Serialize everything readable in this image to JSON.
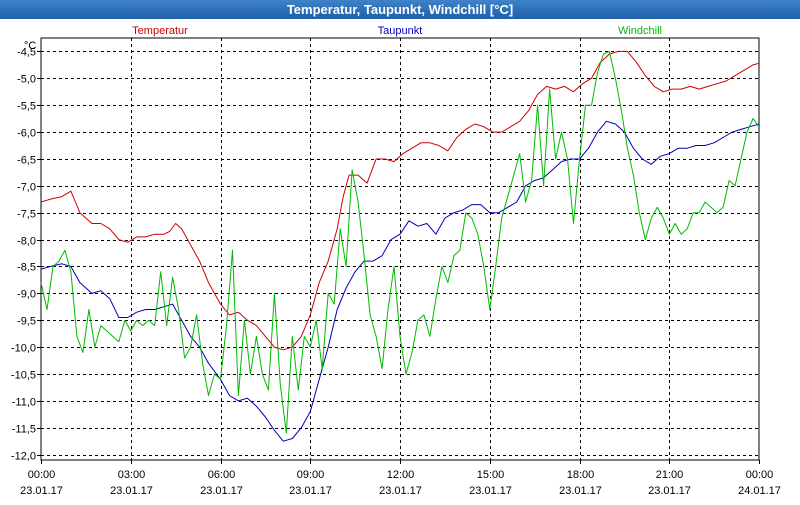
{
  "window": {
    "title": "Temperatur, Taupunkt, Windchill [°C]"
  },
  "chart_data": {
    "type": "line",
    "title": "Temperatur, Taupunkt, Windchill [°C]",
    "unit_label": "°C",
    "ylim": [
      -12.1,
      -4.25
    ],
    "y_ticks": [
      "-4,5",
      "-5,0",
      "-5,5",
      "-6,0",
      "-6,5",
      "-7,0",
      "-7,5",
      "-8,0",
      "-8,5",
      "-9,0",
      "-9,5",
      "-10,0",
      "-10,5",
      "-11,0",
      "-11,5",
      "-12,0"
    ],
    "y_tick_values": [
      -4.5,
      -5,
      -5.5,
      -6,
      -6.5,
      -7,
      -7.5,
      -8,
      -8.5,
      -9,
      -9.5,
      -10,
      -10.5,
      -11,
      -11.5,
      -12
    ],
    "xlim_hours": [
      0,
      24
    ],
    "x_ticks": [
      {
        "h": 0,
        "time": "00:00",
        "date": "23.01.17"
      },
      {
        "h": 3,
        "time": "03:00",
        "date": "23.01.17"
      },
      {
        "h": 6,
        "time": "06:00",
        "date": "23.01.17"
      },
      {
        "h": 9,
        "time": "09:00",
        "date": "23.01.17"
      },
      {
        "h": 12,
        "time": "12:00",
        "date": "23.01.17"
      },
      {
        "h": 15,
        "time": "15:00",
        "date": "23.01.17"
      },
      {
        "h": 18,
        "time": "18:00",
        "date": "23.01.17"
      },
      {
        "h": 21,
        "time": "21:00",
        "date": "23.01.17"
      },
      {
        "h": 24,
        "time": "00:00",
        "date": "24.01.17"
      }
    ],
    "grid": true,
    "series": [
      {
        "name": "Temperatur",
        "color": "#cc0000",
        "points": [
          [
            0,
            -7.3
          ],
          [
            0.3,
            -7.25
          ],
          [
            0.7,
            -7.2
          ],
          [
            1.0,
            -7.1
          ],
          [
            1.3,
            -7.5
          ],
          [
            1.7,
            -7.7
          ],
          [
            2.0,
            -7.7
          ],
          [
            2.3,
            -7.8
          ],
          [
            2.6,
            -8.0
          ],
          [
            2.9,
            -8.05
          ],
          [
            3.2,
            -7.95
          ],
          [
            3.5,
            -7.95
          ],
          [
            3.8,
            -7.9
          ],
          [
            4.1,
            -7.9
          ],
          [
            4.3,
            -7.85
          ],
          [
            4.5,
            -7.7
          ],
          [
            4.7,
            -7.8
          ],
          [
            5.0,
            -8.1
          ],
          [
            5.3,
            -8.4
          ],
          [
            5.6,
            -8.8
          ],
          [
            6.0,
            -9.2
          ],
          [
            6.3,
            -9.4
          ],
          [
            6.6,
            -9.35
          ],
          [
            6.9,
            -9.5
          ],
          [
            7.2,
            -9.6
          ],
          [
            7.5,
            -9.8
          ],
          [
            7.8,
            -10.0
          ],
          [
            8.1,
            -10.05
          ],
          [
            8.4,
            -10.0
          ],
          [
            8.7,
            -9.8
          ],
          [
            9.0,
            -9.4
          ],
          [
            9.3,
            -8.8
          ],
          [
            9.6,
            -8.4
          ],
          [
            9.9,
            -7.8
          ],
          [
            10.1,
            -7.2
          ],
          [
            10.3,
            -6.8
          ],
          [
            10.6,
            -6.8
          ],
          [
            10.9,
            -6.95
          ],
          [
            11.2,
            -6.5
          ],
          [
            11.5,
            -6.5
          ],
          [
            11.8,
            -6.55
          ],
          [
            12.1,
            -6.4
          ],
          [
            12.4,
            -6.3
          ],
          [
            12.7,
            -6.2
          ],
          [
            13.0,
            -6.2
          ],
          [
            13.3,
            -6.25
          ],
          [
            13.6,
            -6.35
          ],
          [
            13.9,
            -6.1
          ],
          [
            14.2,
            -5.95
          ],
          [
            14.5,
            -5.85
          ],
          [
            14.8,
            -5.9
          ],
          [
            15.1,
            -6.0
          ],
          [
            15.4,
            -6.0
          ],
          [
            15.7,
            -5.9
          ],
          [
            16.0,
            -5.8
          ],
          [
            16.3,
            -5.6
          ],
          [
            16.6,
            -5.3
          ],
          [
            16.9,
            -5.15
          ],
          [
            17.2,
            -5.2
          ],
          [
            17.5,
            -5.15
          ],
          [
            17.8,
            -5.25
          ],
          [
            18.1,
            -5.1
          ],
          [
            18.4,
            -5.0
          ],
          [
            18.7,
            -4.7
          ],
          [
            19.0,
            -4.55
          ],
          [
            19.3,
            -4.5
          ],
          [
            19.6,
            -4.5
          ],
          [
            19.9,
            -4.7
          ],
          [
            20.2,
            -4.95
          ],
          [
            20.5,
            -5.15
          ],
          [
            20.8,
            -5.25
          ],
          [
            21.1,
            -5.2
          ],
          [
            21.4,
            -5.2
          ],
          [
            21.7,
            -5.15
          ],
          [
            22.0,
            -5.2
          ],
          [
            22.3,
            -5.15
          ],
          [
            22.6,
            -5.1
          ],
          [
            22.9,
            -5.05
          ],
          [
            23.2,
            -4.95
          ],
          [
            23.5,
            -4.85
          ],
          [
            23.8,
            -4.75
          ],
          [
            24.0,
            -4.72
          ]
        ]
      },
      {
        "name": "Taupunkt",
        "color": "#0000bb",
        "points": [
          [
            0,
            -8.55
          ],
          [
            0.3,
            -8.5
          ],
          [
            0.7,
            -8.45
          ],
          [
            1.0,
            -8.5
          ],
          [
            1.3,
            -8.8
          ],
          [
            1.7,
            -9.0
          ],
          [
            2.0,
            -8.95
          ],
          [
            2.3,
            -9.1
          ],
          [
            2.6,
            -9.45
          ],
          [
            2.9,
            -9.45
          ],
          [
            3.2,
            -9.35
          ],
          [
            3.5,
            -9.3
          ],
          [
            3.8,
            -9.3
          ],
          [
            4.1,
            -9.25
          ],
          [
            4.4,
            -9.2
          ],
          [
            4.7,
            -9.5
          ],
          [
            5.0,
            -9.8
          ],
          [
            5.3,
            -10.0
          ],
          [
            5.6,
            -10.3
          ],
          [
            6.0,
            -10.6
          ],
          [
            6.3,
            -10.9
          ],
          [
            6.6,
            -11.0
          ],
          [
            6.9,
            -10.95
          ],
          [
            7.2,
            -11.1
          ],
          [
            7.5,
            -11.3
          ],
          [
            7.8,
            -11.55
          ],
          [
            8.1,
            -11.75
          ],
          [
            8.4,
            -11.7
          ],
          [
            8.7,
            -11.5
          ],
          [
            9.0,
            -11.2
          ],
          [
            9.3,
            -10.6
          ],
          [
            9.6,
            -10.0
          ],
          [
            9.9,
            -9.3
          ],
          [
            10.2,
            -8.9
          ],
          [
            10.5,
            -8.6
          ],
          [
            10.8,
            -8.4
          ],
          [
            11.1,
            -8.4
          ],
          [
            11.4,
            -8.3
          ],
          [
            11.7,
            -8.0
          ],
          [
            12.0,
            -7.9
          ],
          [
            12.3,
            -7.65
          ],
          [
            12.6,
            -7.75
          ],
          [
            12.9,
            -7.7
          ],
          [
            13.2,
            -7.9
          ],
          [
            13.5,
            -7.6
          ],
          [
            13.8,
            -7.5
          ],
          [
            14.1,
            -7.45
          ],
          [
            14.4,
            -7.35
          ],
          [
            14.7,
            -7.35
          ],
          [
            15.0,
            -7.5
          ],
          [
            15.3,
            -7.5
          ],
          [
            15.6,
            -7.4
          ],
          [
            15.9,
            -7.3
          ],
          [
            16.2,
            -7.0
          ],
          [
            16.5,
            -6.9
          ],
          [
            16.8,
            -6.85
          ],
          [
            17.1,
            -6.7
          ],
          [
            17.4,
            -6.55
          ],
          [
            17.7,
            -6.5
          ],
          [
            18.0,
            -6.5
          ],
          [
            18.3,
            -6.3
          ],
          [
            18.6,
            -6.0
          ],
          [
            18.9,
            -5.8
          ],
          [
            19.2,
            -5.85
          ],
          [
            19.5,
            -6.0
          ],
          [
            19.8,
            -6.3
          ],
          [
            20.1,
            -6.5
          ],
          [
            20.4,
            -6.6
          ],
          [
            20.7,
            -6.45
          ],
          [
            21.0,
            -6.4
          ],
          [
            21.3,
            -6.3
          ],
          [
            21.6,
            -6.3
          ],
          [
            21.9,
            -6.25
          ],
          [
            22.2,
            -6.25
          ],
          [
            22.5,
            -6.2
          ],
          [
            22.8,
            -6.1
          ],
          [
            23.1,
            -6.0
          ],
          [
            23.4,
            -5.95
          ],
          [
            23.7,
            -5.9
          ],
          [
            24.0,
            -5.85
          ]
        ]
      },
      {
        "name": "Windchill",
        "color": "#00bb00",
        "points": [
          [
            0,
            -8.8
          ],
          [
            0.2,
            -9.3
          ],
          [
            0.4,
            -8.5
          ],
          [
            0.6,
            -8.4
          ],
          [
            0.8,
            -8.2
          ],
          [
            1.0,
            -8.6
          ],
          [
            1.2,
            -9.8
          ],
          [
            1.4,
            -10.1
          ],
          [
            1.6,
            -9.3
          ],
          [
            1.8,
            -10.0
          ],
          [
            2.0,
            -9.6
          ],
          [
            2.2,
            -9.7
          ],
          [
            2.4,
            -9.8
          ],
          [
            2.6,
            -9.9
          ],
          [
            2.8,
            -9.5
          ],
          [
            3.0,
            -9.7
          ],
          [
            3.2,
            -9.5
          ],
          [
            3.4,
            -9.6
          ],
          [
            3.6,
            -9.5
          ],
          [
            3.8,
            -9.6
          ],
          [
            4.0,
            -8.6
          ],
          [
            4.2,
            -9.6
          ],
          [
            4.4,
            -8.7
          ],
          [
            4.6,
            -9.3
          ],
          [
            4.8,
            -10.2
          ],
          [
            5.0,
            -10.0
          ],
          [
            5.2,
            -9.4
          ],
          [
            5.4,
            -10.3
          ],
          [
            5.6,
            -10.9
          ],
          [
            5.8,
            -10.5
          ],
          [
            6.0,
            -10.6
          ],
          [
            6.2,
            -9.6
          ],
          [
            6.4,
            -8.2
          ],
          [
            6.6,
            -10.9
          ],
          [
            6.8,
            -9.5
          ],
          [
            7.0,
            -10.5
          ],
          [
            7.2,
            -9.8
          ],
          [
            7.4,
            -10.5
          ],
          [
            7.6,
            -10.8
          ],
          [
            7.8,
            -9.0
          ],
          [
            8.0,
            -10.7
          ],
          [
            8.2,
            -11.6
          ],
          [
            8.4,
            -9.8
          ],
          [
            8.6,
            -10.8
          ],
          [
            8.8,
            -9.8
          ],
          [
            9.0,
            -10.0
          ],
          [
            9.2,
            -9.5
          ],
          [
            9.4,
            -10.4
          ],
          [
            9.6,
            -9.0
          ],
          [
            9.8,
            -9.2
          ],
          [
            10.0,
            -7.8
          ],
          [
            10.2,
            -8.5
          ],
          [
            10.4,
            -6.7
          ],
          [
            10.6,
            -7.3
          ],
          [
            10.8,
            -8.3
          ],
          [
            11.0,
            -9.4
          ],
          [
            11.2,
            -9.8
          ],
          [
            11.4,
            -10.4
          ],
          [
            11.6,
            -9.3
          ],
          [
            11.8,
            -8.5
          ],
          [
            12.0,
            -9.8
          ],
          [
            12.2,
            -10.5
          ],
          [
            12.4,
            -10.1
          ],
          [
            12.6,
            -9.5
          ],
          [
            12.8,
            -9.4
          ],
          [
            13.0,
            -9.8
          ],
          [
            13.2,
            -9.1
          ],
          [
            13.4,
            -8.5
          ],
          [
            13.6,
            -8.8
          ],
          [
            13.8,
            -8.3
          ],
          [
            14.0,
            -8.2
          ],
          [
            14.2,
            -7.5
          ],
          [
            14.4,
            -7.6
          ],
          [
            14.6,
            -7.9
          ],
          [
            14.8,
            -8.5
          ],
          [
            15.0,
            -9.3
          ],
          [
            15.2,
            -8.5
          ],
          [
            15.4,
            -7.6
          ],
          [
            15.6,
            -7.2
          ],
          [
            15.8,
            -6.8
          ],
          [
            16.0,
            -6.4
          ],
          [
            16.2,
            -7.3
          ],
          [
            16.4,
            -6.9
          ],
          [
            16.6,
            -5.5
          ],
          [
            16.8,
            -7.0
          ],
          [
            17.0,
            -5.2
          ],
          [
            17.2,
            -6.5
          ],
          [
            17.4,
            -6.0
          ],
          [
            17.6,
            -6.5
          ],
          [
            17.8,
            -7.7
          ],
          [
            18.0,
            -6.5
          ],
          [
            18.2,
            -5.5
          ],
          [
            18.4,
            -5.5
          ],
          [
            18.6,
            -4.9
          ],
          [
            18.8,
            -4.55
          ],
          [
            19.0,
            -4.5
          ],
          [
            19.2,
            -5.0
          ],
          [
            19.4,
            -5.6
          ],
          [
            19.6,
            -6.3
          ],
          [
            19.8,
            -6.8
          ],
          [
            20.0,
            -7.5
          ],
          [
            20.2,
            -8.0
          ],
          [
            20.4,
            -7.6
          ],
          [
            20.6,
            -7.4
          ],
          [
            20.8,
            -7.6
          ],
          [
            21.0,
            -7.9
          ],
          [
            21.2,
            -7.7
          ],
          [
            21.4,
            -7.9
          ],
          [
            21.6,
            -7.8
          ],
          [
            21.8,
            -7.5
          ],
          [
            22.0,
            -7.5
          ],
          [
            22.2,
            -7.3
          ],
          [
            22.4,
            -7.4
          ],
          [
            22.6,
            -7.5
          ],
          [
            22.8,
            -7.4
          ],
          [
            23.0,
            -6.9
          ],
          [
            23.2,
            -7.0
          ],
          [
            23.4,
            -6.5
          ],
          [
            23.6,
            -6.0
          ],
          [
            23.8,
            -5.75
          ],
          [
            24.0,
            -5.9
          ]
        ]
      }
    ]
  }
}
